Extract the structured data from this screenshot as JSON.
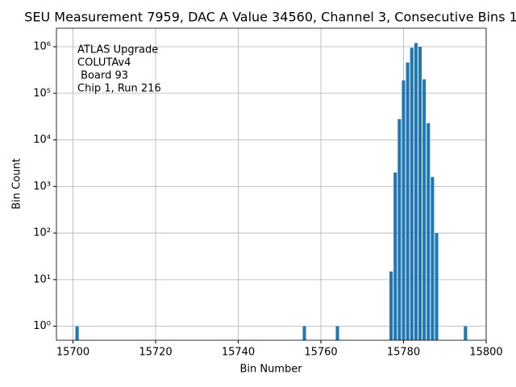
{
  "chart_data": {
    "type": "bar",
    "title": "SEU Measurement 7959, DAC A Value 34560, Channel 3, Consecutive Bins 1",
    "x_label": "Bin Number",
    "y_label": "Bin Count",
    "annotation": [
      "ATLAS Upgrade",
      "COLUTAv4",
      " Board 93",
      "Chip 1, Run 216"
    ],
    "x": [
      15701,
      15756,
      15764,
      15777,
      15778,
      15779,
      15780,
      15781,
      15782,
      15783,
      15784,
      15785,
      15786,
      15787,
      15788,
      15795
    ],
    "values": [
      1,
      1,
      1,
      15,
      2000,
      28000,
      190000,
      460000,
      950000,
      1200000,
      1000000,
      200000,
      23000,
      1600,
      100,
      1
    ],
    "color": "#1f77b4",
    "xlim": [
      15696,
      15800
    ],
    "xticks": [
      15700,
      15720,
      15740,
      15760,
      15780,
      15800
    ],
    "ylim": [
      0.5,
      2500000
    ],
    "log_y": true,
    "yticks": [
      {
        "value": 1,
        "label": "10⁰"
      },
      {
        "value": 10,
        "label": "10¹"
      },
      {
        "value": 100,
        "label": "10²"
      },
      {
        "value": 1000,
        "label": "10³"
      },
      {
        "value": 10000,
        "label": "10⁴"
      },
      {
        "value": 100000,
        "label": "10⁵"
      },
      {
        "value": 1000000,
        "label": "10⁶"
      }
    ],
    "grid": true
  }
}
